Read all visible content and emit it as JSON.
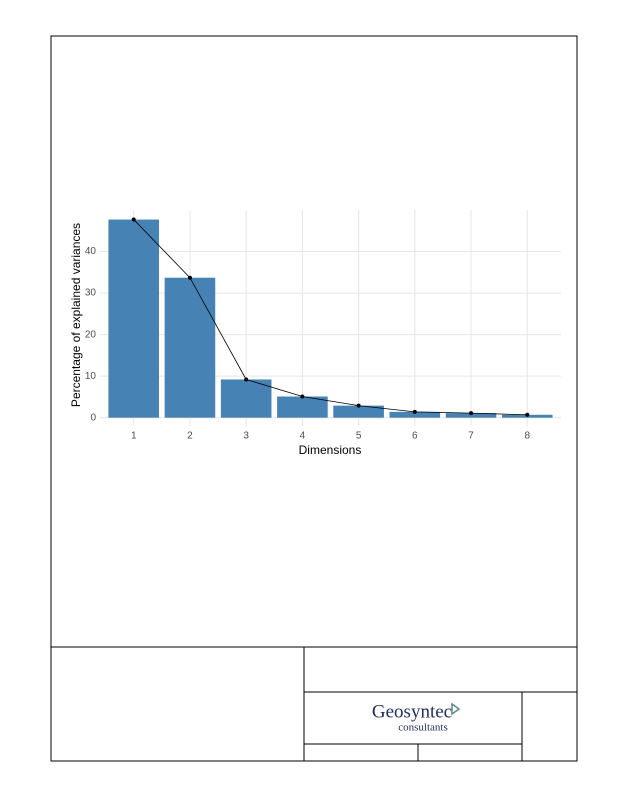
{
  "chart_data": {
    "type": "bar",
    "x_label": "Dimensions",
    "y_label": "Percentage of explained variances",
    "categories": [
      "1",
      "2",
      "3",
      "4",
      "5",
      "6",
      "7",
      "8"
    ],
    "values": [
      47.7,
      33.7,
      9.2,
      5.1,
      2.9,
      1.4,
      1.1,
      0.7
    ],
    "color": "#4682b4",
    "line": true,
    "line_color": "#000000",
    "ylim": [
      -2,
      50
    ],
    "yticks": [
      0,
      10,
      20,
      30,
      40
    ],
    "grid": true
  },
  "logo": {
    "name": "Geosyntec",
    "subtitle": "consultants"
  }
}
